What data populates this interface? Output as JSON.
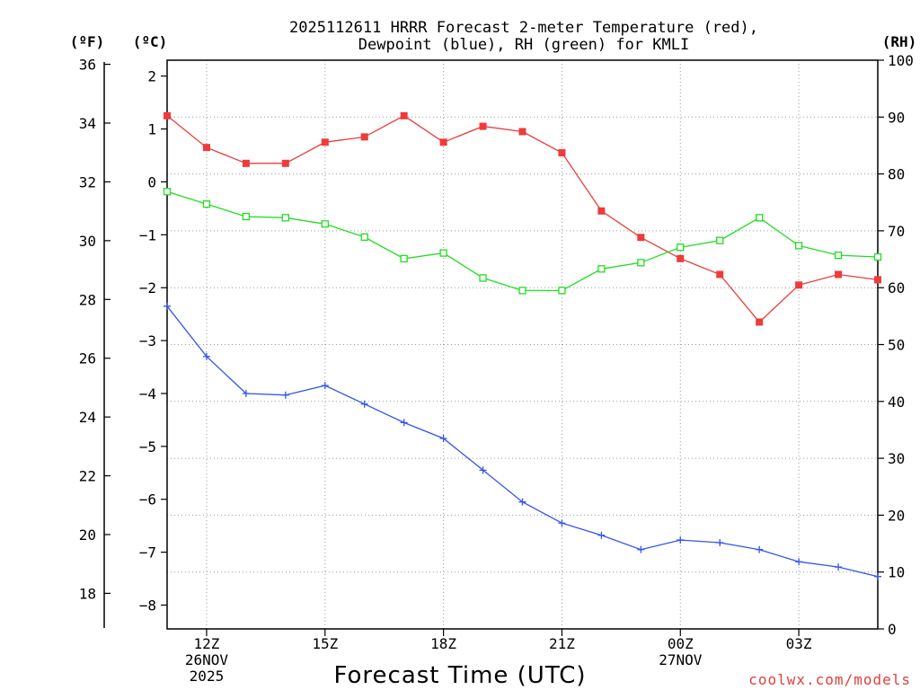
{
  "chart_data": {
    "type": "line",
    "title_line1": "2025112611 HRRR Forecast 2-meter Temperature (red),",
    "title_line2": "Dewpoint (blue), RH (green) for KMLI",
    "xlabel": "Forecast Time (UTC)",
    "credit": "coolwx.com/models",
    "units": {
      "fahrenheit": "(ºF)",
      "celsius": "(ºC)",
      "rh": "(RH)"
    },
    "x_hours": [
      11,
      12,
      13,
      14,
      15,
      16,
      17,
      18,
      19,
      20,
      21,
      22,
      23,
      24,
      25,
      26,
      27,
      28,
      29
    ],
    "xlim": [
      11,
      29
    ],
    "x_ticks": [
      {
        "hour": 12,
        "lines": [
          "12Z",
          "26NOV",
          "2025"
        ]
      },
      {
        "hour": 15,
        "lines": [
          "15Z"
        ]
      },
      {
        "hour": 18,
        "lines": [
          "18Z"
        ]
      },
      {
        "hour": 21,
        "lines": [
          "21Z"
        ]
      },
      {
        "hour": 24,
        "lines": [
          "00Z",
          "27NOV"
        ]
      },
      {
        "hour": 27,
        "lines": [
          "03Z"
        ]
      }
    ],
    "celsius_axis": {
      "range": [
        -8.45,
        2.3
      ],
      "ticks": [
        2,
        1,
        0,
        -1,
        -2,
        -3,
        -4,
        -5,
        -6,
        -7,
        -8
      ],
      "tick_labels": [
        "2",
        "1",
        "0",
        "−1",
        "−2",
        "−3",
        "−4",
        "−5",
        "−6",
        "−7",
        "−8"
      ]
    },
    "fahrenheit_axis": {
      "ticks": [
        36,
        34,
        32,
        30,
        28,
        26,
        24,
        22,
        20,
        18
      ],
      "tick_labels": [
        "36",
        "34",
        "32",
        "30",
        "28",
        "26",
        "24",
        "22",
        "20",
        "18"
      ]
    },
    "rh_axis": {
      "range": [
        0,
        100
      ],
      "ticks": [
        100,
        90,
        80,
        70,
        60,
        50,
        40,
        30,
        20,
        10,
        0
      ],
      "tick_labels": [
        "100",
        "90",
        "80",
        "70",
        "60",
        "50",
        "40",
        "30",
        "20",
        "10",
        "0"
      ]
    },
    "series": [
      {
        "name": "Temperature",
        "axis": "celsius",
        "color": "#ee3b3b",
        "marker": "filled-square",
        "values": [
          1.25,
          0.65,
          0.35,
          0.35,
          0.75,
          0.85,
          1.25,
          0.75,
          1.05,
          0.95,
          0.55,
          -0.55,
          -1.05,
          -1.45,
          -1.75,
          -2.65,
          -1.95,
          -1.75,
          -1.85
        ]
      },
      {
        "name": "Dewpoint",
        "axis": "celsius",
        "color": "#3355ee",
        "marker": "plus",
        "values": [
          -2.35,
          -3.3,
          -4.0,
          -4.03,
          -3.85,
          -4.2,
          -4.55,
          -4.85,
          -5.45,
          -6.05,
          -6.45,
          -6.68,
          -6.95,
          -6.77,
          -6.82,
          -6.95,
          -7.18,
          -7.28,
          -7.46
        ]
      },
      {
        "name": "RH",
        "axis": "rh",
        "color": "#22dd22",
        "marker": "open-square",
        "values": [
          76.9,
          74.7,
          72.5,
          72.3,
          71.2,
          68.9,
          65.1,
          66.1,
          61.7,
          59.5,
          59.5,
          63.3,
          64.4,
          67.1,
          68.3,
          72.3,
          67.4,
          65.7,
          65.4
        ]
      }
    ]
  }
}
